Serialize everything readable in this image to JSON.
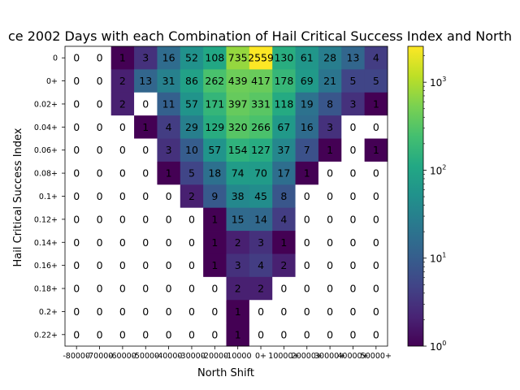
{
  "chart_data": {
    "type": "heatmap",
    "title": "ce 2002 Days with each Combination of Hail Critical Success Index and North",
    "xlabel": "North Shift",
    "ylabel": "Hail Critical Success Index",
    "x_categories": [
      "-80000",
      "-70000",
      "-60000",
      "-50000",
      "-40000",
      "-30000",
      "-20000",
      "-10000",
      "0+",
      "10000+",
      "20000+",
      "30000+",
      "40000+",
      "50000+"
    ],
    "x_tick_text": [
      "-80000",
      "-70000",
      "-60000",
      "-50000",
      "-40000",
      "-30000",
      "-20000",
      "-10000",
      "0+",
      "10000+",
      "20000+",
      "30000+",
      "40000+",
      "50000+"
    ],
    "y_categories": [
      "0",
      "0+",
      "0.02+",
      "0.04+",
      "0.06+",
      "0.08+",
      "0.1+",
      "0.12+",
      "0.14+",
      "0.16+",
      "0.18+",
      "0.2+",
      "0.22+"
    ],
    "values": [
      [
        0,
        0,
        1,
        3,
        16,
        52,
        108,
        735,
        2559,
        130,
        61,
        28,
        13,
        4
      ],
      [
        0,
        0,
        2,
        13,
        31,
        86,
        262,
        439,
        417,
        178,
        69,
        21,
        5,
        5
      ],
      [
        0,
        0,
        2,
        0,
        11,
        57,
        171,
        397,
        331,
        118,
        19,
        8,
        3,
        1
      ],
      [
        0,
        0,
        0,
        1,
        4,
        29,
        129,
        320,
        266,
        67,
        16,
        3,
        0,
        0
      ],
      [
        0,
        0,
        0,
        0,
        3,
        10,
        57,
        154,
        127,
        37,
        7,
        1,
        0,
        1
      ],
      [
        0,
        0,
        0,
        0,
        1,
        5,
        18,
        74,
        70,
        17,
        1,
        0,
        0,
        0
      ],
      [
        0,
        0,
        0,
        0,
        0,
        2,
        9,
        38,
        45,
        8,
        0,
        0,
        0,
        0
      ],
      [
        0,
        0,
        0,
        0,
        0,
        0,
        1,
        15,
        14,
        4,
        0,
        0,
        0,
        0
      ],
      [
        0,
        0,
        0,
        0,
        0,
        0,
        1,
        2,
        3,
        1,
        0,
        0,
        0,
        0
      ],
      [
        0,
        0,
        0,
        0,
        0,
        0,
        1,
        3,
        4,
        2,
        0,
        0,
        0,
        0
      ],
      [
        0,
        0,
        0,
        0,
        0,
        0,
        0,
        2,
        2,
        0,
        0,
        0,
        0,
        0
      ],
      [
        0,
        0,
        0,
        0,
        0,
        0,
        0,
        1,
        0,
        0,
        0,
        0,
        0,
        0
      ],
      [
        0,
        0,
        0,
        0,
        0,
        0,
        0,
        1,
        0,
        0,
        0,
        0,
        0,
        0
      ]
    ],
    "colormap": "viridis",
    "color_scale": "log",
    "color_range": [
      1,
      2559
    ],
    "zero_cells_color": "#ffffff",
    "colorbar": {
      "ticks": [
        {
          "value": 1,
          "base": "10",
          "exp": "0"
        },
        {
          "value": 10,
          "base": "10",
          "exp": "1"
        },
        {
          "value": 100,
          "base": "10",
          "exp": "2"
        },
        {
          "value": 1000,
          "base": "10",
          "exp": "3"
        }
      ]
    },
    "grid": false,
    "legend": "colorbar-right"
  }
}
